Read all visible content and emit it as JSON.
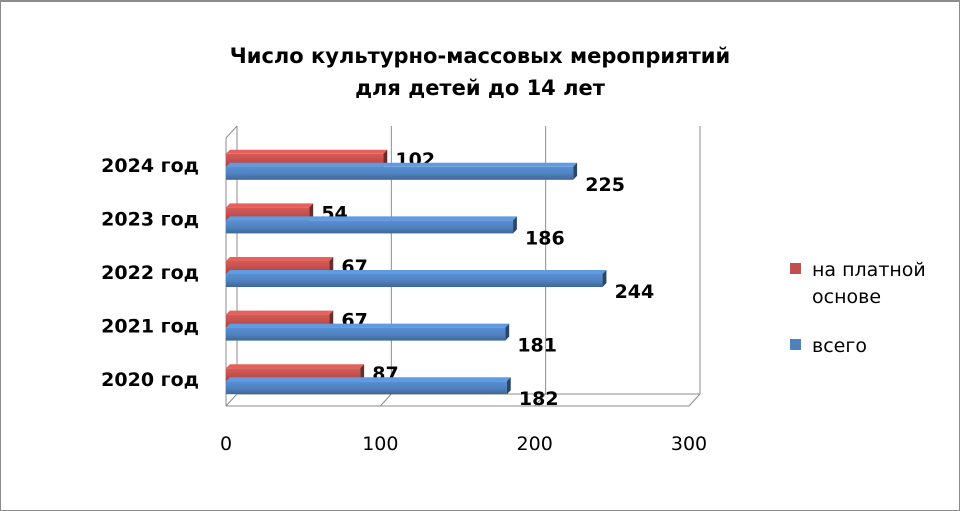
{
  "chart_data": {
    "type": "bar",
    "orientation": "horizontal",
    "title_lines": [
      "Число культурно-массовых мероприятий",
      "для детей до 14 лет"
    ],
    "categories": [
      "2020 год",
      "2021 год",
      "2022 год",
      "2023 год",
      "2024 год"
    ],
    "series": [
      {
        "name": "всего",
        "color": "#4f81bd",
        "values": [
          182,
          181,
          244,
          186,
          225
        ]
      },
      {
        "name": "на платной основе",
        "color": "#c0504d",
        "values": [
          87,
          67,
          67,
          54,
          102
        ]
      }
    ],
    "xlim": [
      0,
      300
    ],
    "xticks": [
      "0",
      "100",
      "200",
      "300"
    ],
    "grid": true,
    "legend": "right",
    "legend_order": [
      1,
      0
    ]
  }
}
